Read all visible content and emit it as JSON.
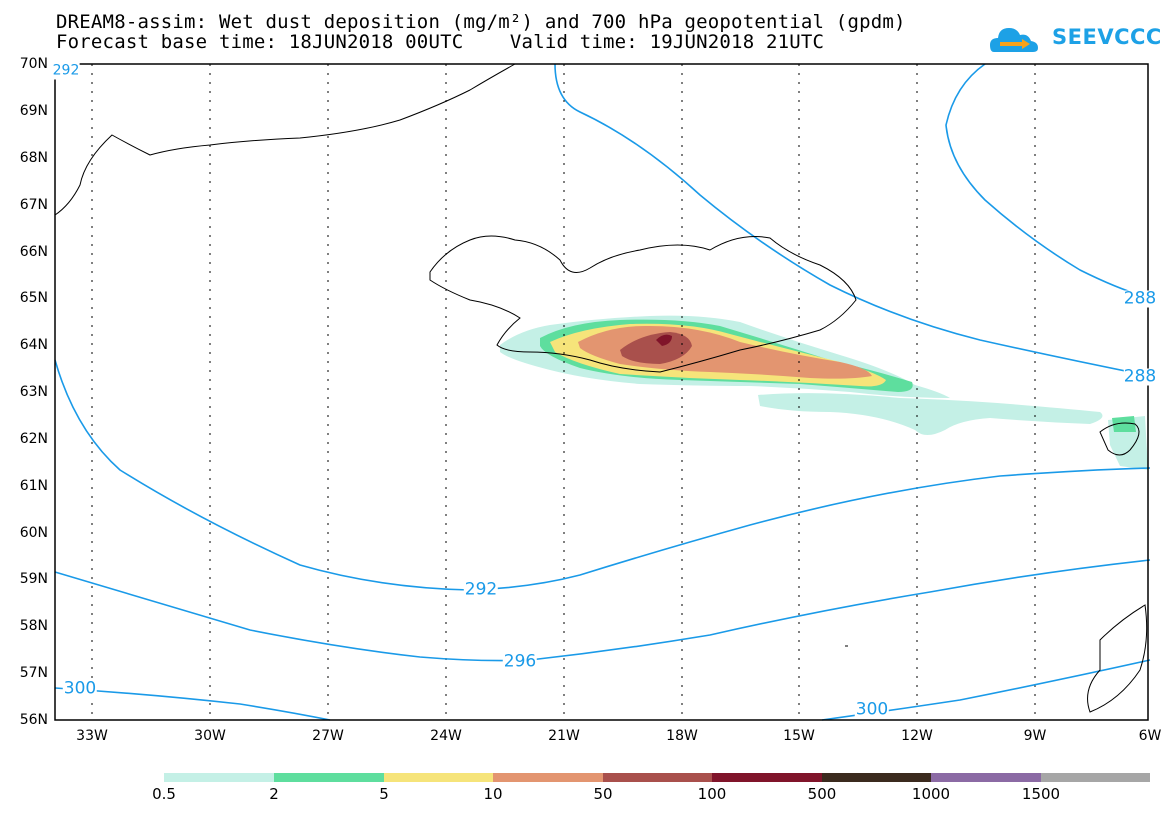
{
  "title": {
    "line1": "DREAM8-assim: Wet dust deposition (mg/m²) and 700 hPa geopotential (gpdm)",
    "line2": "Forecast base time: 18JUN2018 00UTC    Valid time: 19JUN2018 21UTC"
  },
  "logo": {
    "text": "SEEVCCC",
    "icon": "cloud-arrow-icon",
    "color": "#1da1e6"
  },
  "map": {
    "lat_labels": [
      "70N",
      "69N",
      "68N",
      "67N",
      "66N",
      "65N",
      "64N",
      "63N",
      "62N",
      "61N",
      "60N",
      "59N",
      "58N",
      "57N",
      "56N"
    ],
    "lon_labels": [
      "33W",
      "30W",
      "27W",
      "24W",
      "21W",
      "18W",
      "15W",
      "12W",
      "9W",
      "6W"
    ],
    "contour_color": "#1a9ae8",
    "contour_labels": [
      "292",
      "296",
      "300",
      "300",
      "288",
      "288",
      "292"
    ]
  },
  "colorbar": {
    "colors": [
      "#c4f0e6",
      "#5ede9e",
      "#f6e47a",
      "#e39570",
      "#a9504c",
      "#80142a",
      "#3b2a1e",
      "#8b6aa4",
      "#a6a6a6"
    ],
    "labels": [
      "0.5",
      "2",
      "5",
      "10",
      "50",
      "100",
      "500",
      "1000",
      "1500"
    ]
  }
}
